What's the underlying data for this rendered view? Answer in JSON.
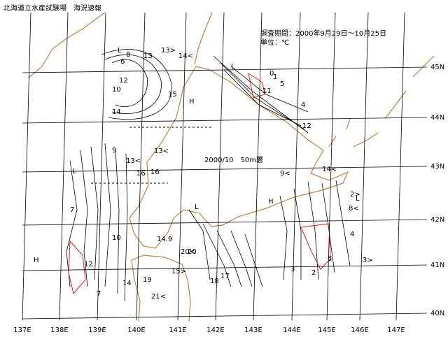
{
  "header": {
    "title": "北海道立水産試験場　海況速報",
    "period": "調査期間：2000年9月29日～10月25日",
    "unit": "単位：℃"
  },
  "map": {
    "center_label": "2000/10　50m層",
    "longitude_labels": [
      "137E",
      "138E",
      "139E",
      "140E",
      "141E",
      "142E",
      "143E",
      "144E",
      "145E",
      "146E",
      "147E"
    ],
    "latitude_labels": [
      "45N",
      "44N",
      "43N",
      "42N",
      "41N",
      "40N"
    ],
    "contour_labels": [
      "L",
      "6",
      "8",
      "10",
      "12",
      "13",
      "14",
      "15",
      "H",
      "16",
      "9",
      "7",
      "13>",
      "14<",
      "13<",
      "20",
      "L",
      "11",
      "12",
      "10",
      "5",
      "4",
      "3",
      "2",
      "1",
      "0",
      "9<",
      "8<",
      "2>",
      "3>",
      "H",
      "17",
      "18",
      "19",
      "21<",
      "14.9",
      "20<",
      "15>",
      "4",
      "5",
      "7",
      "H",
      "L",
      "L",
      "L",
      "14<",
      "13<",
      "12",
      "16",
      "14"
    ]
  }
}
